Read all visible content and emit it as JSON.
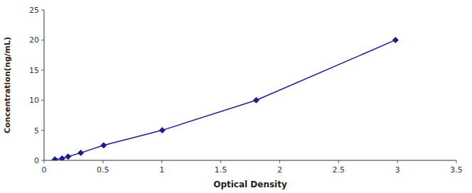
{
  "chart_data": {
    "type": "line",
    "xlabel": "Optical Density",
    "ylabel": "Concentration(ng/mL)",
    "x": [
      0.092,
      0.153,
      0.204,
      0.312,
      0.506,
      1.003,
      1.801,
      2.983
    ],
    "values": [
      0.156,
      0.313,
      0.625,
      1.25,
      2.5,
      5.0,
      10.0,
      20.0
    ],
    "color": "#1C1C8F",
    "marker": "diamond",
    "xlim": [
      0,
      3.5
    ],
    "ylim": [
      0,
      25
    ],
    "xticks": [
      0,
      0.5,
      1.0,
      1.5,
      2.0,
      2.5,
      3.0,
      3.5
    ],
    "yticks": [
      0,
      5,
      10,
      15,
      20,
      25
    ],
    "grid": false
  }
}
